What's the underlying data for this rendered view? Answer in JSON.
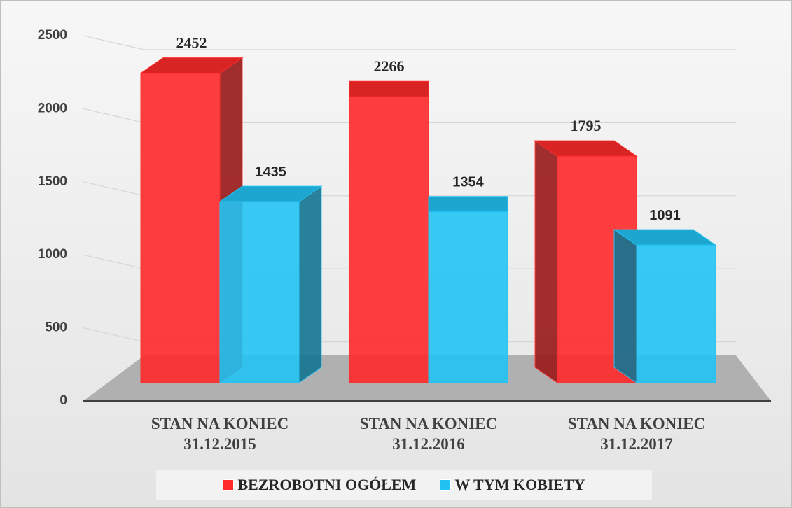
{
  "chart_data": {
    "type": "bar3d",
    "categories": [
      "STAN NA KONIEC\n31.12.2015",
      "STAN NA KONIEC\n31.12.2016",
      "STAN NA KONIEC\n31.12.2017"
    ],
    "series": [
      {
        "name": "BEZROBOTNI OGÓŁEM",
        "color": "#ff2a2a",
        "values": [
          2452,
          2266,
          1795
        ]
      },
      {
        "name": "W TYM KOBIETY",
        "color": "#22c3f3",
        "values": [
          1435,
          1354,
          1091
        ]
      }
    ],
    "ylim": [
      0,
      2500
    ],
    "yticks": [
      0,
      500,
      1000,
      1500,
      2000,
      2500
    ],
    "grid": true,
    "legend": "bottom"
  }
}
